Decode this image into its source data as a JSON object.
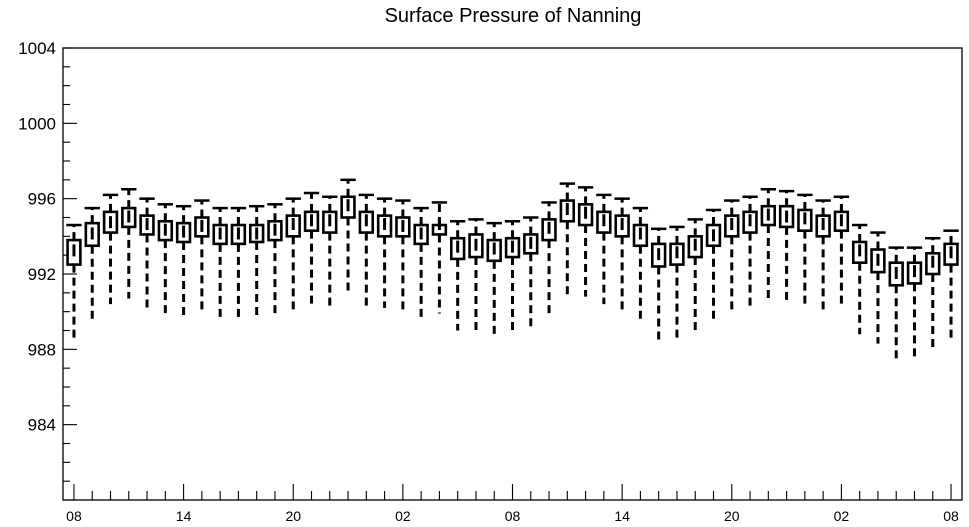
{
  "chart_data": {
    "type": "box",
    "title": "Surface Pressure of Nanning",
    "xlabel": "",
    "ylabel": "",
    "ylim": [
      980,
      1004
    ],
    "yticks": [
      984,
      988,
      992,
      996,
      1000,
      1004
    ],
    "xticks": [
      {
        "index": 0,
        "label": "08"
      },
      {
        "index": 6,
        "label": "14"
      },
      {
        "index": 12,
        "label": "20"
      },
      {
        "index": 18,
        "label": "02"
      },
      {
        "index": 24,
        "label": "08"
      },
      {
        "index": 30,
        "label": "14"
      },
      {
        "index": 36,
        "label": "20"
      },
      {
        "index": 42,
        "label": "02"
      },
      {
        "index": 48,
        "label": "08"
      }
    ],
    "n_positions": 49,
    "boxes": [
      {
        "index": 0,
        "q1": 992.5,
        "median": 993.2,
        "q3": 993.8,
        "min": 988.6,
        "max": 994.6
      },
      {
        "index": 1,
        "q1": 993.5,
        "median": 994.1,
        "q3": 994.7,
        "min": 989.6,
        "max": 995.5
      },
      {
        "index": 2,
        "q1": 994.2,
        "median": 994.7,
        "q3": 995.3,
        "min": 990.4,
        "max": 996.2
      },
      {
        "index": 3,
        "q1": 994.5,
        "median": 995.0,
        "q3": 995.5,
        "min": 990.7,
        "max": 996.5
      },
      {
        "index": 4,
        "q1": 994.1,
        "median": 994.6,
        "q3": 995.1,
        "min": 990.2,
        "max": 996.0
      },
      {
        "index": 5,
        "q1": 993.8,
        "median": 994.3,
        "q3": 994.8,
        "min": 989.9,
        "max": 995.7
      },
      {
        "index": 6,
        "q1": 993.7,
        "median": 994.2,
        "q3": 994.7,
        "min": 989.8,
        "max": 995.6
      },
      {
        "index": 7,
        "q1": 994.0,
        "median": 994.5,
        "q3": 995.0,
        "min": 990.0,
        "max": 995.9
      },
      {
        "index": 8,
        "q1": 993.6,
        "median": 994.1,
        "q3": 994.6,
        "min": 989.7,
        "max": 995.5
      },
      {
        "index": 9,
        "q1": 993.6,
        "median": 994.1,
        "q3": 994.6,
        "min": 989.7,
        "max": 995.5
      },
      {
        "index": 10,
        "q1": 993.7,
        "median": 994.1,
        "q3": 994.6,
        "min": 989.8,
        "max": 995.6
      },
      {
        "index": 11,
        "q1": 993.8,
        "median": 994.3,
        "q3": 994.8,
        "min": 989.9,
        "max": 995.7
      },
      {
        "index": 12,
        "q1": 994.0,
        "median": 994.6,
        "q3": 995.1,
        "min": 990.1,
        "max": 996.0
      },
      {
        "index": 13,
        "q1": 994.3,
        "median": 994.8,
        "q3": 995.3,
        "min": 990.4,
        "max": 996.3
      },
      {
        "index": 14,
        "q1": 994.2,
        "median": 994.8,
        "q3": 995.3,
        "min": 990.3,
        "max": 996.1
      },
      {
        "index": 15,
        "q1": 995.0,
        "median": 995.6,
        "q3": 996.1,
        "min": 991.0,
        "max": 997.0
      },
      {
        "index": 16,
        "q1": 994.2,
        "median": 994.8,
        "q3": 995.3,
        "min": 990.3,
        "max": 996.2
      },
      {
        "index": 17,
        "q1": 994.0,
        "median": 994.6,
        "q3": 995.1,
        "min": 990.2,
        "max": 996.0
      },
      {
        "index": 18,
        "q1": 994.0,
        "median": 994.5,
        "q3": 995.0,
        "min": 990.1,
        "max": 995.9
      },
      {
        "index": 19,
        "q1": 993.6,
        "median": 994.1,
        "q3": 994.6,
        "min": 989.6,
        "max": 995.5
      },
      {
        "index": 20,
        "q1": 994.1,
        "median": 994.6,
        "q3": 994.6,
        "min": 989.9,
        "max": 995.8
      },
      {
        "index": 21,
        "q1": 992.8,
        "median": 993.4,
        "q3": 993.9,
        "min": 989.0,
        "max": 994.8
      },
      {
        "index": 22,
        "q1": 992.9,
        "median": 993.5,
        "q3": 994.1,
        "min": 989.0,
        "max": 994.9
      },
      {
        "index": 23,
        "q1": 992.7,
        "median": 993.3,
        "q3": 993.8,
        "min": 988.7,
        "max": 994.7
      },
      {
        "index": 24,
        "q1": 992.9,
        "median": 993.4,
        "q3": 993.9,
        "min": 989.0,
        "max": 994.8
      },
      {
        "index": 25,
        "q1": 993.1,
        "median": 993.6,
        "q3": 994.1,
        "min": 989.1,
        "max": 995.0
      },
      {
        "index": 26,
        "q1": 993.8,
        "median": 994.4,
        "q3": 994.9,
        "min": 989.9,
        "max": 995.8
      },
      {
        "index": 27,
        "q1": 994.8,
        "median": 995.4,
        "q3": 995.9,
        "min": 990.9,
        "max": 996.8
      },
      {
        "index": 28,
        "q1": 994.6,
        "median": 995.2,
        "q3": 995.7,
        "min": 990.8,
        "max": 996.6
      },
      {
        "index": 29,
        "q1": 994.2,
        "median": 994.8,
        "q3": 995.3,
        "min": 990.4,
        "max": 996.2
      },
      {
        "index": 30,
        "q1": 994.0,
        "median": 994.6,
        "q3": 995.1,
        "min": 990.1,
        "max": 996.0
      },
      {
        "index": 31,
        "q1": 993.5,
        "median": 994.1,
        "q3": 994.6,
        "min": 989.5,
        "max": 995.5
      },
      {
        "index": 32,
        "q1": 992.4,
        "median": 993.0,
        "q3": 993.6,
        "min": 988.5,
        "max": 994.4
      },
      {
        "index": 33,
        "q1": 992.5,
        "median": 993.1,
        "q3": 993.6,
        "min": 988.5,
        "max": 994.5
      },
      {
        "index": 34,
        "q1": 992.9,
        "median": 993.5,
        "q3": 994.0,
        "min": 988.9,
        "max": 994.9
      },
      {
        "index": 35,
        "q1": 993.5,
        "median": 994.0,
        "q3": 994.6,
        "min": 989.6,
        "max": 995.4
      },
      {
        "index": 36,
        "q1": 994.0,
        "median": 994.6,
        "q3": 995.1,
        "min": 990.1,
        "max": 995.9
      },
      {
        "index": 37,
        "q1": 994.2,
        "median": 994.8,
        "q3": 995.3,
        "min": 990.3,
        "max": 996.1
      },
      {
        "index": 38,
        "q1": 994.6,
        "median": 995.1,
        "q3": 995.6,
        "min": 990.7,
        "max": 996.5
      },
      {
        "index": 39,
        "q1": 994.5,
        "median": 995.0,
        "q3": 995.6,
        "min": 990.6,
        "max": 996.4
      },
      {
        "index": 40,
        "q1": 994.3,
        "median": 994.9,
        "q3": 995.4,
        "min": 990.3,
        "max": 996.2
      },
      {
        "index": 41,
        "q1": 994.0,
        "median": 994.6,
        "q3": 995.1,
        "min": 990.1,
        "max": 995.9
      },
      {
        "index": 42,
        "q1": 994.3,
        "median": 994.8,
        "q3": 995.3,
        "min": 990.3,
        "max": 996.1
      },
      {
        "index": 43,
        "q1": 992.6,
        "median": 993.2,
        "q3": 993.7,
        "min": 988.8,
        "max": 994.6
      },
      {
        "index": 44,
        "q1": 992.1,
        "median": 992.7,
        "q3": 993.3,
        "min": 988.3,
        "max": 994.2
      },
      {
        "index": 45,
        "q1": 991.4,
        "median": 992.0,
        "q3": 992.6,
        "min": 987.5,
        "max": 993.4
      },
      {
        "index": 46,
        "q1": 991.5,
        "median": 992.1,
        "q3": 992.6,
        "min": 987.6,
        "max": 993.4
      },
      {
        "index": 47,
        "q1": 992.0,
        "median": 992.6,
        "q3": 993.1,
        "min": 988.1,
        "max": 993.9
      },
      {
        "index": 48,
        "q1": 992.5,
        "median": 993.1,
        "q3": 993.6,
        "min": 988.5,
        "max": 994.3
      }
    ],
    "colors": {
      "box": "#000000",
      "background": "#ffffff"
    }
  }
}
